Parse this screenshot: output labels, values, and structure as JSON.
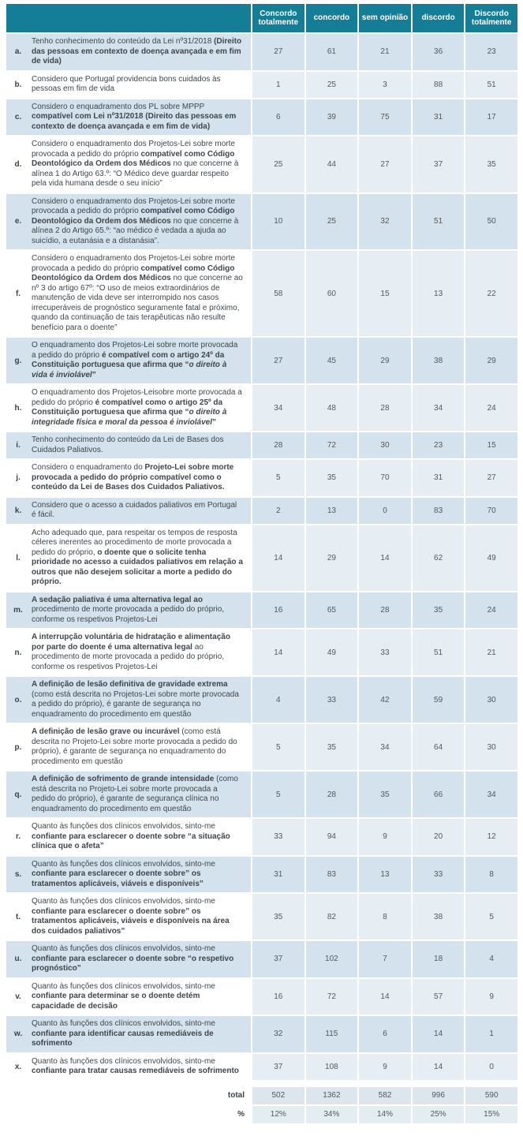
{
  "colors": {
    "header_teal": "#137e96",
    "row_blue": "#d3e2ec",
    "numeric_light": "#e6eef4",
    "total_cell_bg": "#dce6ec",
    "percent_cell_bg": "#e4edf2"
  },
  "header": {
    "columns": [
      "Concordo totalmente",
      "concordo",
      "sem opinião",
      "discordo",
      "Discordo totalmente"
    ]
  },
  "rows": [
    {
      "label": "a.",
      "question_html": "Tenho conhecimento do conteúdo da Lei nº31/2018 <b>(Direito das pessoas em contexto de doença avançada e em fim de vida)</b>",
      "values": [
        27,
        61,
        21,
        36,
        23
      ]
    },
    {
      "label": "b.",
      "question_html": "Considero que Portugal providencia bons cuidados às pessoas em fim de vida",
      "values": [
        1,
        25,
        3,
        88,
        51
      ]
    },
    {
      "label": "c.",
      "question_html": "Considero o enquadramento dos PL sobre MPPP <b>compatível com Lei nº31/2018 (Direito das pessoas em contexto de doença avançada e em fim de vida)</b>",
      "values": [
        6,
        39,
        75,
        31,
        17
      ]
    },
    {
      "label": "d.",
      "question_html": "Considero o enquadramento dos Projetos-Lei sobre morte provocada a pedido do próprio <b>compatível como Código Deontológico da Ordem dos Médicos</b> no que concerne à alínea 1 do Artigo 63.º: “O Médico deve guardar respeito pela vida humana desde o seu início”",
      "values": [
        25,
        44,
        27,
        37,
        35
      ]
    },
    {
      "label": "e.",
      "question_html": "Considero o enquadramento dos Projetos-Lei sobre morte provocada a pedido do próprio <b>compatível como Código Deontológico da Ordem dos Médicos</b> no que concerne à alínea 2 do Artigo 65.º: “ao médico é vedada a ajuda ao suicídio, a eutanásia e a distanásia”.",
      "values": [
        10,
        25,
        32,
        51,
        50
      ]
    },
    {
      "label": "f.",
      "question_html": "Considero o enquadramento dos Projetos-Lei sobre morte provocada a pedido do próprio <b>compatível como Código Deontológico da Ordem dos Médicos</b> no que concerne ao nº 3 do artigo 67º: “O uso de meios extraordinários de manutenção de vida deve ser interrompido nos casos irrecuperáveis de prognóstico seguramente fatal e próximo, quando da continuação de tais terapêuticas não resulte benefício para o doente”",
      "values": [
        58,
        60,
        15,
        13,
        22
      ]
    },
    {
      "label": "g.",
      "question_html": "O enquadramento dos Projetos-Lei sobre morte provocada a pedido do próprio <b>é compatível com o artigo 24º da Constituição portuguesa que afirma que “<i>o direito à vida é inviolável</i>”</b>",
      "values": [
        27,
        45,
        29,
        38,
        29
      ]
    },
    {
      "label": "h.",
      "question_html": "O enquadramento dos Projetos-Leisobre morte provocada a pedido do próprio <b>é compatível como o artigo 25º da Constituição portuguesa que afirma que “<i>o direito à integridade física e moral da pessoa é inviolável</i>”</b>",
      "values": [
        34,
        48,
        28,
        34,
        24
      ]
    },
    {
      "label": "i.",
      "question_html": "Tenho conhecimento do conteúdo da Lei de Bases dos Cuidados Paliativos.",
      "values": [
        28,
        72,
        30,
        23,
        15
      ]
    },
    {
      "label": "j.",
      "question_html": "Considero o enquadramento do <b>Projeto-Lei sobre morte provocada a pedido do próprio compatível como o conteúdo da Lei de Bases dos Cuidados Paliativos.</b>",
      "values": [
        5,
        35,
        70,
        31,
        27
      ]
    },
    {
      "label": "k.",
      "question_html": "Considero que o acesso a cuidados paliativos em Portugal é fácil.",
      "values": [
        2,
        13,
        0,
        83,
        70
      ]
    },
    {
      "label": "l.",
      "question_html": "Acho adequado que, para respeitar os tempos de resposta céleres inerentes ao procedimento de morte provocada a pedido do próprio, <b>o doente que o solicite tenha prioridade no acesso a cuidados paliativos em relação a outros que não desejem solicitar a morte a pedido do próprio.</b>",
      "values": [
        14,
        29,
        14,
        62,
        49
      ]
    },
    {
      "label": "m.",
      "question_html": "<b>A sedação paliativa é uma alternativa legal ao</b> procedimento de morte provocada a pedido do próprio, conforme os respetivos Projetos-Lei",
      "values": [
        16,
        65,
        28,
        35,
        24
      ]
    },
    {
      "label": "n.",
      "question_html": "<b>A interrupção voluntária de hidratação e alimentação por parte do doente é uma alternativa legal</b> ao procedimento de morte provocada a pedido do próprio, conforme os respetivos Projetos-Lei",
      "values": [
        14,
        49,
        33,
        51,
        21
      ]
    },
    {
      "label": "o.",
      "question_html": "<b>A definição de lesão definitiva de gravidade extrema</b> (como está descrita no Projetos-Lei sobre morte provocada a pedido do próprio), é garante de segurança no enquadramento do procedimento em questão",
      "values": [
        4,
        33,
        42,
        59,
        30
      ]
    },
    {
      "label": "p.",
      "question_html": "<b>A definição de lesão grave ou incurável</b> (como está descrita no Projeto-Lei sobre morte provocada a pedido do próprio), é garante de segurança no enquadramento do procedimento em questão",
      "values": [
        5,
        35,
        34,
        64,
        30
      ]
    },
    {
      "label": "q.",
      "question_html": "<b>A definição de sofrimento de grande intensidade</b> (como está descrita no Projeto-Lei sobre morte provocada a pedido do próprio), é garante de segurança clínica no enquadramento do procedimento em questão",
      "values": [
        5,
        28,
        35,
        66,
        34
      ]
    },
    {
      "label": "r.",
      "question_html": "Quanto às funções dos clínicos envolvidos, sinto-me <b>confiante para esclarecer o doente sobre “a situação clínica que o afeta”</b>",
      "values": [
        33,
        94,
        9,
        20,
        12
      ]
    },
    {
      "label": "s.",
      "question_html": "Quanto às funções dos clínicos envolvidos, sinto-me <b>confiante para esclarecer o doente sobre” os tratamentos aplicáveis, viáveis e disponíveis”</b>",
      "values": [
        31,
        83,
        13,
        33,
        8
      ]
    },
    {
      "label": "t.",
      "question_html": "Quanto às funções dos clínicos envolvidos, sinto-me <b>confiante para esclarecer o doente sobre” os tratamentos aplicáveis, viáveis e disponíveis na área dos cuidados paliativos”</b>",
      "values": [
        35,
        82,
        8,
        38,
        5
      ]
    },
    {
      "label": "u.",
      "question_html": "Quanto às funções dos clínicos envolvidos, sinto-me <b>confiante para esclarecer o doente sobre “o respetivo prognóstico”</b>",
      "values": [
        37,
        102,
        7,
        18,
        4
      ]
    },
    {
      "label": "v.",
      "question_html": "Quanto às funções dos clínicos envolvidos, sinto-me <b>confiante para determinar se o doente detém capacidade de decisão</b>",
      "values": [
        16,
        72,
        14,
        57,
        9
      ]
    },
    {
      "label": "w.",
      "question_html": "Quanto às funções dos clínicos envolvidos, sinto-me <b>confiante para identificar causas remediáveis de sofrimento</b>",
      "values": [
        32,
        115,
        6,
        14,
        1
      ]
    },
    {
      "label": "x.",
      "question_html": "Quanto às funções dos clínicos envolvidos, sinto-me <b>confiante para tratar causas remediáveis de sofrimento</b>",
      "values": [
        37,
        108,
        9,
        14,
        0
      ]
    }
  ],
  "footer": {
    "total_label": "total",
    "totals": [
      502,
      1362,
      582,
      996,
      590
    ],
    "percent_label": "%",
    "percents": [
      "12%",
      "34%",
      "14%",
      "25%",
      "15%"
    ]
  }
}
